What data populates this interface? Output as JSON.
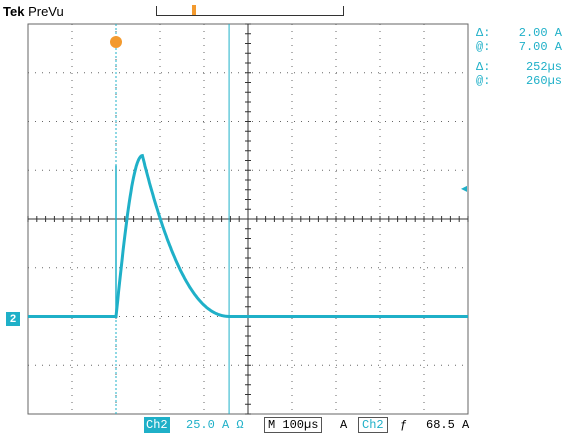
{
  "header": {
    "brand": "Tek",
    "mode": "PreVu"
  },
  "cursor_readouts": [
    {
      "symbol": "Δ:",
      "value": "2.00 A"
    },
    {
      "symbol": "@:",
      "value": "7.00 A"
    },
    {
      "symbol": "Δ:",
      "value": "252µs"
    },
    {
      "symbol": "@:",
      "value": "260µs"
    }
  ],
  "channel_marker": "2",
  "status_bar": {
    "channel": "Ch2",
    "scale": "25.0 A Ω",
    "timebase": "M 100µs",
    "trigger_label": "A",
    "trigger_source": "Ch2",
    "trigger_slope": "ƒ",
    "trigger_level": "68.5 A"
  },
  "colors": {
    "trace": "#1fb0c8",
    "trigger": "#f39a2e",
    "grid": "#666666",
    "background": "#ffffff"
  },
  "chart_data": {
    "type": "line",
    "x_divisions": 10,
    "y_divisions": 8,
    "baseline_div": -2.0,
    "pulse_start_div": 2.0,
    "peak_div": 1.3,
    "peak_time_div": 2.6,
    "settle_time_div": 4.6
  }
}
